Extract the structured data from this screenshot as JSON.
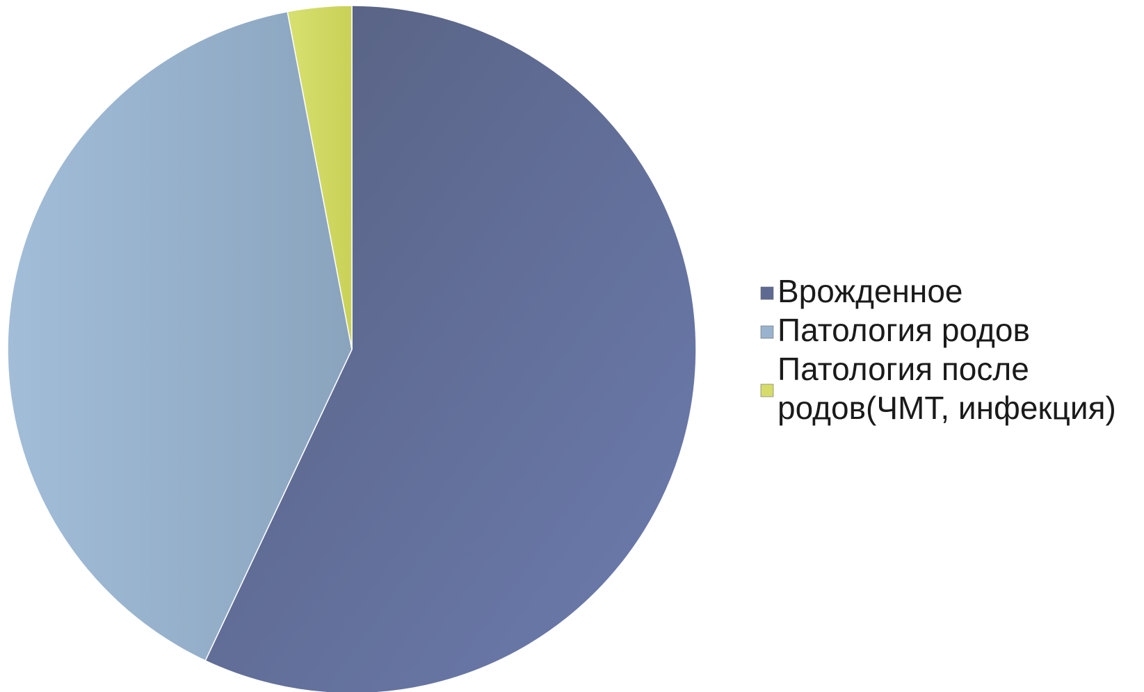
{
  "chart_data": {
    "type": "pie",
    "title": "",
    "legend_position": "right",
    "series": [
      {
        "values": [
          57,
          40,
          3
        ],
        "categories": [
          "Врожденное",
          "Патология родов",
          "Патология после родов(ЧМТ, инфекция)"
        ],
        "colors": [
          "#5e6a92",
          "#99b3cf",
          "#d5dc6a"
        ]
      }
    ],
    "legend": [
      {
        "lines": [
          "Врожденное"
        ]
      },
      {
        "lines": [
          "Патология родов"
        ]
      },
      {
        "lines": [
          "Патология после",
          "родов(ЧМТ, инфекция)"
        ]
      }
    ]
  }
}
